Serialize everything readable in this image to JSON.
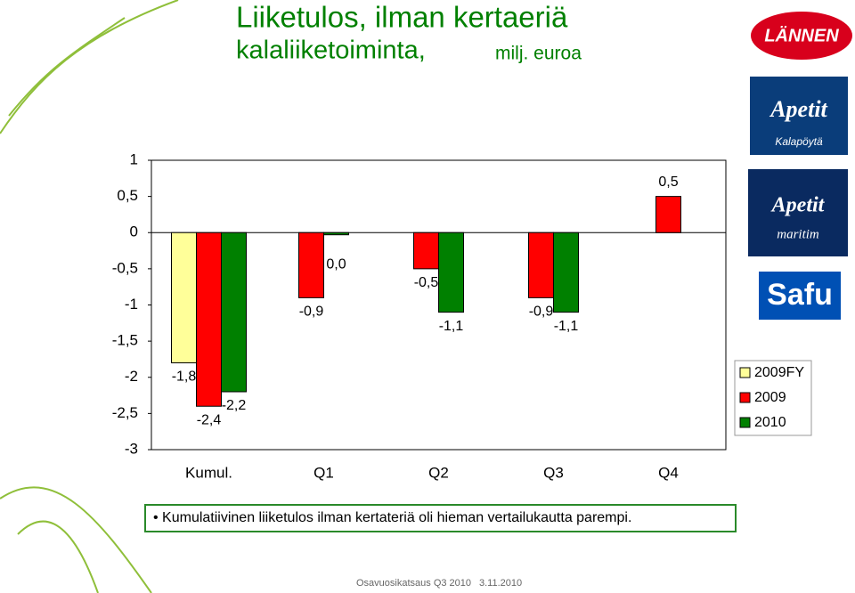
{
  "chart_data": {
    "type": "bar",
    "title": "Liiketulos, ilman kertaeriä",
    "subtitle": "kalaliiketoiminta,",
    "unit": "milj. euroa",
    "categories": [
      "Kumul.",
      "Q1",
      "Q2",
      "Q3",
      "Q4"
    ],
    "series": [
      {
        "name": "2009FY",
        "color": "#ffff99",
        "values": [
          -1.8,
          null,
          null,
          null,
          null
        ],
        "value_labels": [
          "-1,8",
          null,
          null,
          null,
          null
        ]
      },
      {
        "name": "2009",
        "color": "#ff0000",
        "values": [
          -2.4,
          -0.9,
          -0.5,
          -0.9,
          0.5
        ],
        "value_labels": [
          "-2,4",
          "-0,9",
          "-0,5",
          "-0,9",
          "0,5"
        ]
      },
      {
        "name": "2010",
        "color": "#008000",
        "values": [
          -2.2,
          -0.03,
          -1.1,
          -1.1,
          null
        ],
        "value_labels": [
          "-2,2",
          "0,0",
          "-1,1",
          "-1,1",
          null
        ]
      }
    ],
    "ylim": [
      -3,
      1
    ],
    "yticks": [
      -3,
      {
        "value": -2.5,
        "label": "-2,5"
      },
      -2,
      {
        "value": -1.5,
        "label": "-1,5"
      },
      -1,
      {
        "value": -0.5,
        "label": "-0,5"
      },
      0,
      {
        "value": 0.5,
        "label": "0,5"
      },
      1
    ],
    "grid": false,
    "legend": "right"
  },
  "note": "Kumulatiivinen liiketulos ilman kertateriä oli hieman vertailukautta parempi.",
  "footer": {
    "text": "Osavuosikatsaus Q3 2010",
    "date": "3.11.2010"
  },
  "logos": [
    "LÄNNEN",
    "Apetit",
    "Kalapöytä",
    "Apetit",
    "maritim",
    "Safu"
  ]
}
